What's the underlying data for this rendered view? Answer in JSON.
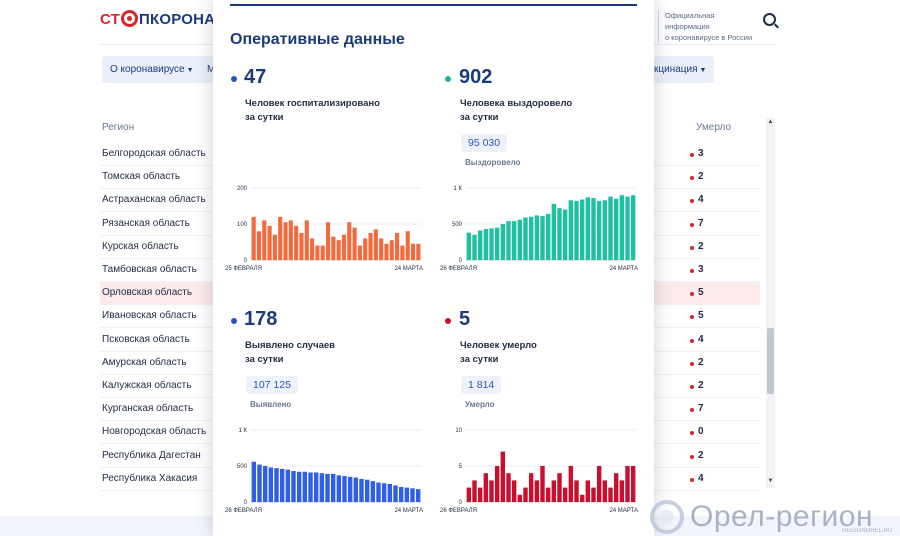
{
  "header": {
    "logo_red": "СТ",
    "logo_dark": "ПКОРОНАВИ",
    "info_line1": "Официальная информация",
    "info_line2": "о коронавирусе в России"
  },
  "nav": {
    "item1": "О коронавирусе",
    "item2": "М",
    "item3": "кцинация"
  },
  "table": {
    "col_region": "Регион",
    "col_died": "Умерло",
    "rows": [
      {
        "region": "Белгородская область",
        "died": "3"
      },
      {
        "region": "Томская область",
        "died": "2"
      },
      {
        "region": "Астраханская область",
        "died": "4"
      },
      {
        "region": "Рязанская область",
        "died": "7"
      },
      {
        "region": "Курская область",
        "died": "2"
      },
      {
        "region": "Тамбовская область",
        "died": "3"
      },
      {
        "region": "Орловская область",
        "died": "5"
      },
      {
        "region": "Ивановская область",
        "died": "5"
      },
      {
        "region": "Псковская область",
        "died": "4"
      },
      {
        "region": "Амурская область",
        "died": "2"
      },
      {
        "region": "Калужская область",
        "died": "2"
      },
      {
        "region": "Курганская область",
        "died": "7"
      },
      {
        "region": "Новгородская область",
        "died": "0"
      },
      {
        "region": "Республика Дагестан",
        "died": "2"
      },
      {
        "region": "Республика Хакасия",
        "died": "4"
      }
    ]
  },
  "panel": {
    "title": "Оперативные данные",
    "hosp": {
      "value": "47",
      "desc1": "Человек госпитализировано",
      "desc2": "за сутки"
    },
    "recovered": {
      "value": "902",
      "desc1": "Человека выздоровело",
      "desc2": "за сутки",
      "total": "95 030",
      "total_label": "Выздоровело"
    },
    "cases": {
      "value": "178",
      "desc1": "Выявлено случаев",
      "desc2": "за сутки",
      "total": "107 125",
      "total_label": "Выявлено"
    },
    "deaths": {
      "value": "5",
      "desc1": "Человек умерло",
      "desc2": "за сутки",
      "total": "1 814",
      "total_label": "Умерло"
    }
  },
  "watermark": {
    "text": "Орел-регион",
    "sub": "REGIONOREL.RU"
  },
  "colors": {
    "hosp": "#f26a3d",
    "recovered": "#1fc1a0",
    "cases": "#2f5ee8",
    "deaths": "#c8102e",
    "dot_blue": "#2a56b8",
    "dot_teal": "#1fb39a",
    "dot_red": "#c8102e"
  },
  "chart_data": [
    {
      "type": "bar",
      "name": "hospitalized",
      "x_start": "25 ФЕВРАЛЯ",
      "x_end": "24 МАРТА",
      "ylim": [
        0,
        200
      ],
      "ticks": [
        "200",
        "100",
        "0"
      ],
      "values": [
        120,
        80,
        110,
        95,
        70,
        120,
        105,
        110,
        95,
        75,
        110,
        60,
        40,
        40,
        105,
        65,
        55,
        70,
        105,
        90,
        40,
        60,
        75,
        85,
        60,
        45,
        55,
        75,
        40,
        80,
        45,
        45
      ]
    },
    {
      "type": "bar",
      "name": "recovered",
      "x_start": "26 ФЕВРАЛЯ",
      "x_end": "24 МАРТА",
      "ylim": [
        0,
        1000
      ],
      "ticks": [
        "1 К",
        "500",
        "0"
      ],
      "values": [
        380,
        350,
        410,
        430,
        440,
        450,
        500,
        540,
        540,
        560,
        590,
        600,
        620,
        610,
        640,
        780,
        720,
        700,
        830,
        820,
        840,
        870,
        860,
        820,
        830,
        880,
        850,
        900,
        880,
        900
      ]
    },
    {
      "type": "bar",
      "name": "cases",
      "x_start": "26 ФЕВРАЛЯ",
      "x_end": "24 МАРТА",
      "ylim": [
        0,
        1000
      ],
      "ticks": [
        "1 К",
        "500",
        "0"
      ],
      "values": [
        560,
        520,
        500,
        480,
        470,
        460,
        450,
        430,
        420,
        420,
        410,
        410,
        400,
        390,
        390,
        370,
        360,
        350,
        340,
        320,
        310,
        290,
        270,
        260,
        250,
        230,
        210,
        200,
        190,
        178
      ]
    },
    {
      "type": "bar",
      "name": "deaths",
      "x_start": "26 ФЕВРАЛЯ",
      "x_end": "24 МАРТА",
      "ylim": [
        0,
        10
      ],
      "ticks": [
        "10",
        "5",
        "0"
      ],
      "values": [
        2,
        3,
        2,
        4,
        3,
        5,
        7,
        4,
        3,
        1,
        2,
        4,
        3,
        5,
        2,
        3,
        4,
        2,
        5,
        3,
        1,
        3,
        2,
        5,
        3,
        2,
        4,
        3,
        5,
        5
      ]
    }
  ]
}
